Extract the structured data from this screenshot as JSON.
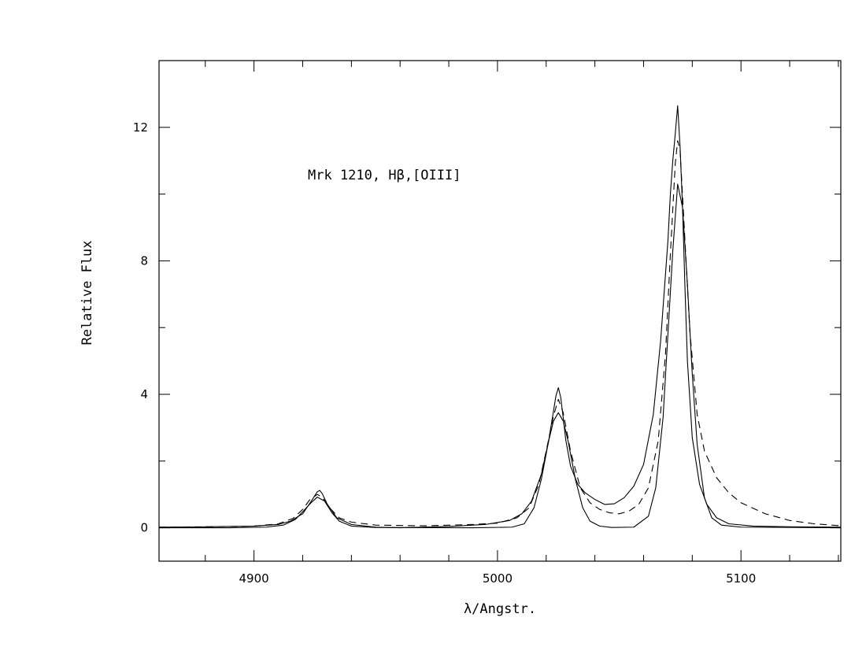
{
  "chart_data": {
    "type": "line",
    "title": "",
    "annotation": "Mrk 1210, Hβ,[OIII]",
    "xlabel": "λ/Angstr.",
    "ylabel": "Relative Flux",
    "xlim": [
      4861,
      5141
    ],
    "ylim": [
      -1,
      14
    ],
    "xticks": [
      4900,
      5000,
      5100
    ],
    "yticks": [
      0,
      4,
      8,
      12
    ],
    "grid": false,
    "legend": "none",
    "series": [
      {
        "style": "solid-step",
        "x": [
          4861,
          4880,
          4900,
          4910,
          4915,
          4920,
          4924,
          4926,
          4927,
          4928,
          4930,
          4934,
          4940,
          4950,
          4960,
          4980,
          4995,
          5005,
          5010,
          5014,
          5018,
          5021,
          5023,
          5024,
          5025,
          5026,
          5027,
          5028,
          5030,
          5033,
          5036,
          5040,
          5044,
          5048,
          5052,
          5056,
          5060,
          5064,
          5067,
          5070,
          5071,
          5072,
          5073,
          5074,
          5075,
          5076,
          5077,
          5078,
          5080,
          5083,
          5086,
          5090,
          5095,
          5105,
          5120,
          5141
        ],
        "y": [
          0.02,
          0.03,
          0.05,
          0.1,
          0.2,
          0.42,
          0.85,
          1.08,
          1.12,
          1.03,
          0.72,
          0.3,
          0.1,
          0.02,
          0.0,
          0.04,
          0.1,
          0.22,
          0.42,
          0.8,
          1.6,
          2.6,
          3.5,
          3.95,
          4.2,
          3.9,
          3.3,
          2.65,
          1.85,
          1.3,
          1.05,
          0.85,
          0.7,
          0.72,
          0.9,
          1.25,
          1.9,
          3.4,
          5.6,
          8.6,
          10.0,
          11.0,
          11.8,
          12.65,
          11.4,
          9.6,
          7.2,
          5.0,
          2.7,
          1.3,
          0.7,
          0.3,
          0.12,
          0.05,
          0.03,
          0.02
        ]
      },
      {
        "style": "dashed",
        "x": [
          4861,
          4880,
          4900,
          4910,
          4916,
          4920,
          4923,
          4926,
          4928,
          4931,
          4935,
          4940,
          4950,
          4970,
          4990,
          5000,
          5008,
          5013,
          5017,
          5020,
          5023,
          5025,
          5027,
          5030,
          5034,
          5038,
          5042,
          5046,
          5050,
          5054,
          5058,
          5062,
          5066,
          5069,
          5071,
          5073,
          5074,
          5075,
          5077,
          5079,
          5082,
          5085,
          5090,
          5095,
          5100,
          5110,
          5120,
          5130,
          5141
        ],
        "y": [
          0.02,
          0.03,
          0.05,
          0.12,
          0.28,
          0.55,
          0.85,
          1.0,
          0.92,
          0.6,
          0.3,
          0.17,
          0.08,
          0.06,
          0.1,
          0.14,
          0.3,
          0.6,
          1.3,
          2.3,
          3.35,
          3.85,
          3.45,
          2.3,
          1.2,
          0.75,
          0.55,
          0.45,
          0.42,
          0.5,
          0.7,
          1.2,
          2.6,
          5.2,
          8.2,
          10.9,
          11.6,
          11.3,
          8.6,
          5.9,
          3.4,
          2.3,
          1.5,
          1.05,
          0.75,
          0.42,
          0.22,
          0.12,
          0.06
        ]
      },
      {
        "style": "solid-smooth",
        "x": [
          4861,
          4890,
          4905,
          4912,
          4917,
          4920,
          4923,
          4926,
          4929,
          4932,
          4935,
          4940,
          4950,
          4990,
          5006,
          5011,
          5015,
          5018,
          5021,
          5023,
          5025,
          5027,
          5029,
          5032,
          5035,
          5038,
          5042,
          5047,
          5056,
          5062,
          5065,
          5068,
          5070,
          5072,
          5074,
          5076,
          5078,
          5080,
          5082,
          5085,
          5088,
          5092,
          5100,
          5141
        ],
        "y": [
          0.0,
          0.0,
          0.02,
          0.08,
          0.25,
          0.48,
          0.72,
          0.92,
          0.8,
          0.45,
          0.2,
          0.05,
          0.01,
          0.0,
          0.02,
          0.12,
          0.6,
          1.45,
          2.6,
          3.2,
          3.45,
          3.2,
          2.6,
          1.45,
          0.6,
          0.2,
          0.05,
          0.01,
          0.02,
          0.35,
          1.2,
          3.3,
          5.8,
          8.3,
          10.3,
          9.6,
          7.3,
          4.6,
          2.5,
          0.9,
          0.3,
          0.08,
          0.02,
          0.0
        ]
      }
    ]
  }
}
